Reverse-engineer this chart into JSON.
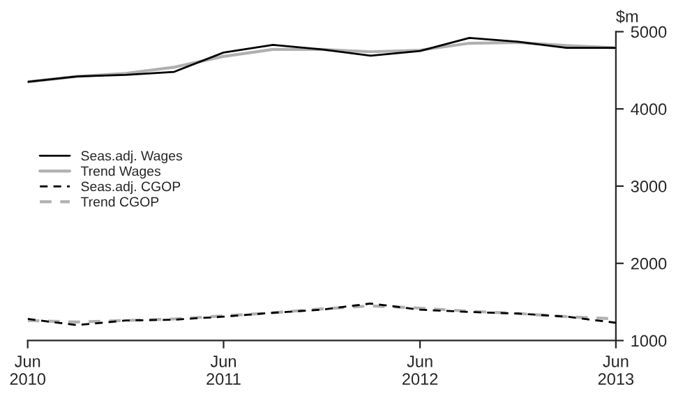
{
  "chart_data": {
    "type": "line",
    "ylabel": "$m",
    "x": [
      "2010-06",
      "2010-09",
      "2010-12",
      "2011-03",
      "2011-06",
      "2011-09",
      "2011-12",
      "2012-03",
      "2012-06",
      "2012-09",
      "2012-12",
      "2013-03",
      "2013-06"
    ],
    "series": [
      {
        "name": "Seas.adj. Wages",
        "color": "#000000",
        "line_style": "solid",
        "values": [
          4350,
          4420,
          4440,
          4480,
          4730,
          4830,
          4770,
          4690,
          4750,
          4920,
          4870,
          4790,
          4790
        ]
      },
      {
        "name": "Trend Wages",
        "color": "#b0b0b0",
        "line_style": "solid",
        "values": [
          4350,
          4420,
          4460,
          4540,
          4680,
          4770,
          4770,
          4740,
          4760,
          4850,
          4860,
          4820,
          4790
        ]
      },
      {
        "name": "Seas.adj. CGOP",
        "color": "#000000",
        "line_style": "dashed",
        "values": [
          1280,
          1200,
          1260,
          1270,
          1310,
          1360,
          1400,
          1480,
          1400,
          1370,
          1350,
          1310,
          1230
        ]
      },
      {
        "name": "Trend CGOP",
        "color": "#b0b0b0",
        "line_style": "dashed",
        "values": [
          1260,
          1240,
          1260,
          1280,
          1320,
          1360,
          1410,
          1450,
          1420,
          1380,
          1350,
          1310,
          1280
        ]
      }
    ],
    "xlim": [
      "2010-06",
      "2013-06"
    ],
    "xticks": [
      {
        "value": "2010-06",
        "label": "Jun\n2010"
      },
      {
        "value": "2011-06",
        "label": "Jun\n2011"
      },
      {
        "value": "2012-06",
        "label": "Jun\n2012"
      },
      {
        "value": "2013-06",
        "label": "Jun\n2013"
      }
    ],
    "ylim": [
      1000,
      5000
    ],
    "yticks": [
      1000,
      2000,
      3000,
      4000,
      5000
    ],
    "grid": false,
    "legend": "left",
    "marker": "none"
  }
}
